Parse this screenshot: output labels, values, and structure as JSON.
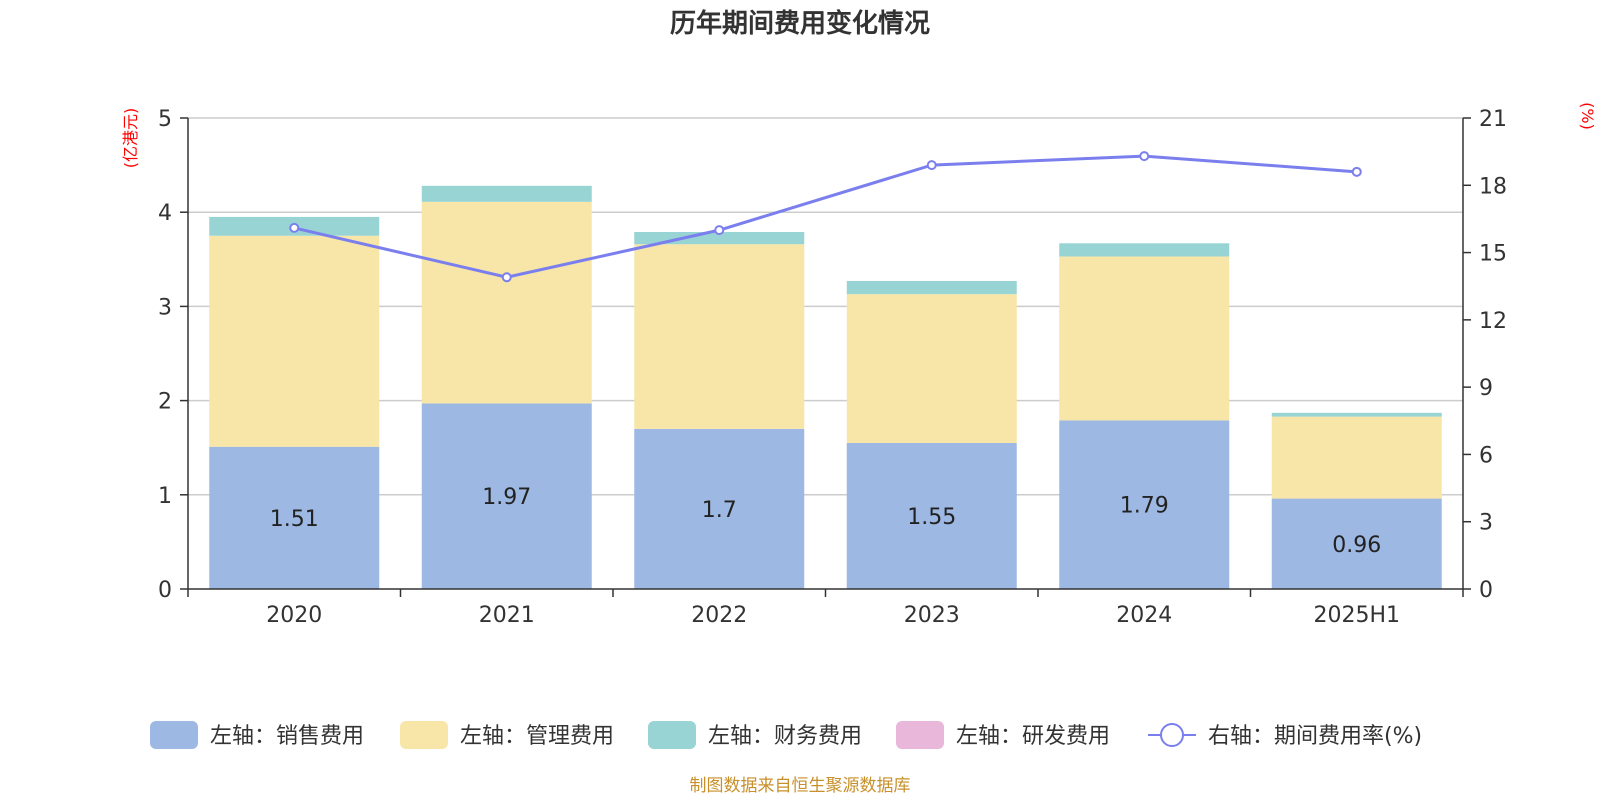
{
  "chart_data": {
    "type": "bar",
    "title": "历年期间费用变化情况",
    "categories": [
      "2020",
      "2021",
      "2022",
      "2023",
      "2024",
      "2025H1"
    ],
    "left_axis": {
      "unit_label": "(亿港元)",
      "ylim": [
        0,
        5
      ],
      "ticks": [
        "0",
        "1",
        "2",
        "3",
        "4",
        "5"
      ]
    },
    "right_axis": {
      "unit_label": "(%)",
      "ylim": [
        0,
        21
      ],
      "ticks": [
        "0",
        "3",
        "6",
        "9",
        "12",
        "15",
        "18",
        "21"
      ]
    },
    "series": [
      {
        "name": "左轴：销售费用",
        "kind": "bar",
        "axis": "left",
        "color": "#9db8e2",
        "values": [
          1.51,
          1.97,
          1.7,
          1.55,
          1.79,
          0.96
        ],
        "labels": [
          "1.51",
          "1.97",
          "1.7",
          "1.55",
          "1.79",
          "0.96"
        ]
      },
      {
        "name": "左轴：管理费用",
        "kind": "bar",
        "axis": "left",
        "color": "#f7e6a8",
        "values": [
          2.24,
          2.14,
          1.96,
          1.58,
          1.74,
          0.87
        ]
      },
      {
        "name": "左轴：财务费用",
        "kind": "bar",
        "axis": "left",
        "color": "#99d4d4",
        "values": [
          0.2,
          0.17,
          0.13,
          0.14,
          0.14,
          0.04
        ]
      },
      {
        "name": "左轴：研发费用",
        "kind": "bar",
        "axis": "left",
        "color": "#e8b7d9",
        "values": [
          0,
          0,
          0,
          0,
          0,
          0
        ]
      },
      {
        "name": "右轴：期间费用率(%)",
        "kind": "line",
        "axis": "right",
        "color": "#7b7fee",
        "values": [
          16.1,
          13.9,
          16.0,
          18.9,
          19.3,
          18.6
        ]
      }
    ],
    "grid": true,
    "legend_position": "bottom",
    "source": "制图数据来自恒生聚源数据库"
  }
}
